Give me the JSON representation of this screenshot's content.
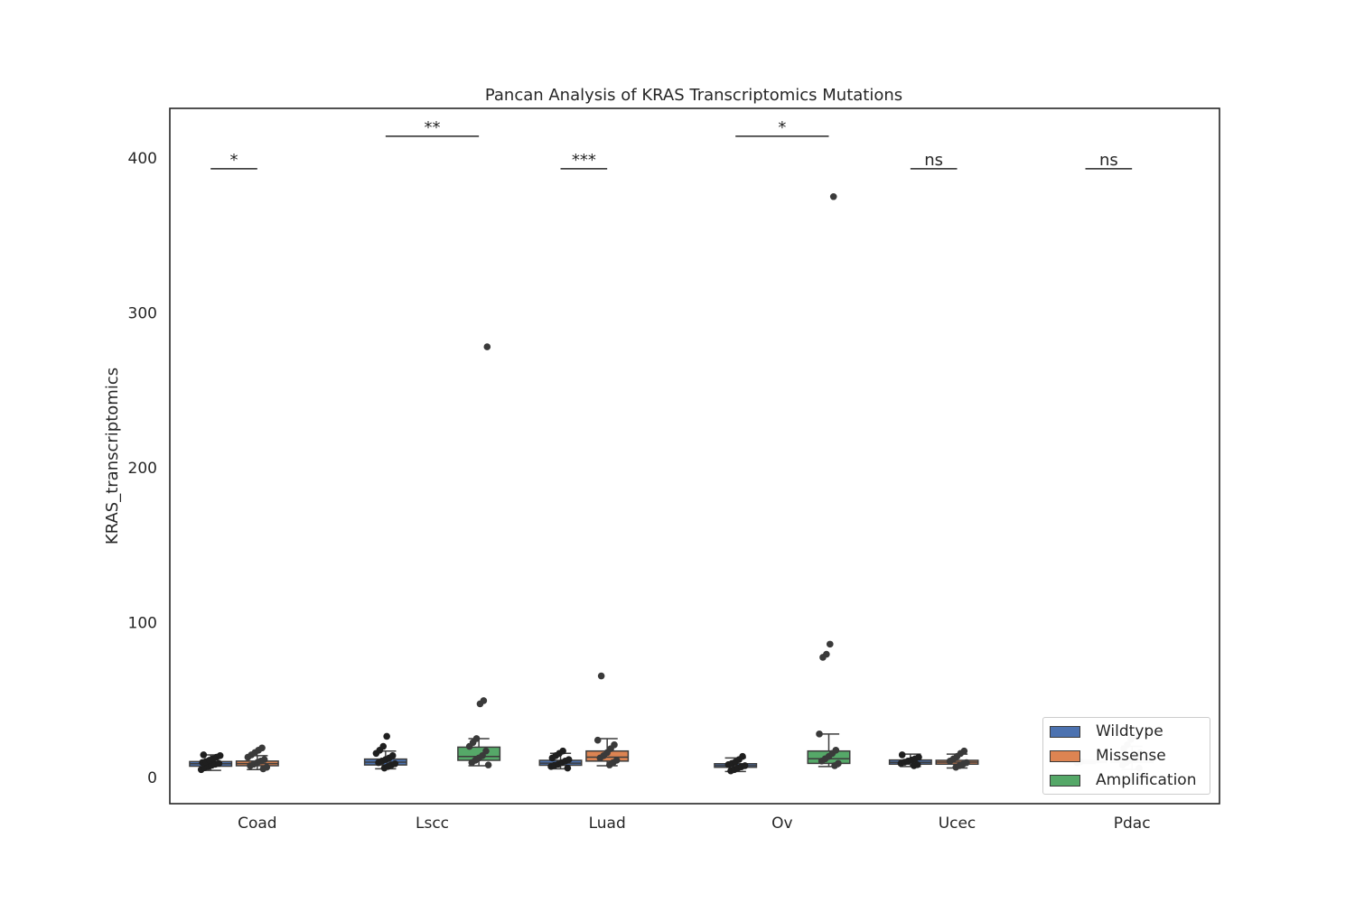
{
  "chart_data": {
    "type": "box",
    "title": "Pancan Analysis of KRAS Transcriptomics Mutations",
    "xlabel": "",
    "ylabel": "KRAS_transcriptomics",
    "ylim": [
      -17,
      432
    ],
    "yticks": [
      0,
      100,
      200,
      300,
      400
    ],
    "grid": false,
    "legend_position": "lower-right",
    "categories": [
      "Coad",
      "Lscc",
      "Luad",
      "Ov",
      "Ucec",
      "Pdac"
    ],
    "series": [
      {
        "name": "Wildtype",
        "color": "#4c72b0",
        "boxes": [
          {
            "category": "Coad",
            "whislo": 4.5,
            "q1": 7.2,
            "med": 8.8,
            "q3": 10.2,
            "whishi": 14.5,
            "points": [
              5.0,
              6.2,
              7.0,
              7.8,
              8.5,
              9.0,
              9.6,
              10.2,
              11.0,
              12.0,
              13.0,
              14.0,
              14.5
            ]
          },
          {
            "category": "Lscc",
            "whislo": 5.5,
            "q1": 8.0,
            "med": 9.8,
            "q3": 11.8,
            "whishi": 17.0,
            "points": [
              6.0,
              7.0,
              8.0,
              8.8,
              9.5,
              10.5,
              11.5,
              12.5,
              14.0,
              15.5,
              17.5,
              20.0,
              26.5
            ]
          },
          {
            "category": "Luad",
            "whislo": 5.5,
            "q1": 7.8,
            "med": 9.2,
            "q3": 11.0,
            "whishi": 15.5,
            "points": [
              6.0,
              7.0,
              7.8,
              8.5,
              9.5,
              10.5,
              11.5,
              12.5,
              14.0,
              15.5,
              17.0
            ]
          },
          {
            "category": "Ov",
            "whislo": 3.8,
            "q1": 6.5,
            "med": 7.6,
            "q3": 8.8,
            "whishi": 12.5,
            "points": [
              4.2,
              5.0,
              6.0,
              6.8,
              7.5,
              8.2,
              9.0,
              10.0,
              11.5,
              13.5
            ]
          },
          {
            "category": "Ucec",
            "whislo": 7.0,
            "q1": 8.5,
            "med": 9.7,
            "q3": 11.2,
            "whishi": 15.0,
            "points": [
              7.5,
              8.2,
              9.0,
              9.8,
              10.5,
              11.2,
              12.0,
              13.0,
              14.5
            ]
          },
          {
            "category": "Pdac",
            "whislo": 9.0,
            "q1": 9.5,
            "med": 10.0,
            "q3": 10.5,
            "whishi": 11.0,
            "points": [
              9.5,
              10.0
            ]
          }
        ]
      },
      {
        "name": "Missense",
        "color": "#dd8452",
        "boxes": [
          {
            "category": "Coad",
            "whislo": 5.0,
            "q1": 7.5,
            "med": 8.9,
            "q3": 10.5,
            "whishi": 14.0,
            "points": [
              5.5,
              6.5,
              7.5,
              8.5,
              9.5,
              10.5,
              11.5,
              13.0,
              14.5,
              16.0,
              17.5,
              19.0
            ]
          },
          {
            "category": "Luad",
            "whislo": 7.5,
            "q1": 10.5,
            "med": 13.0,
            "q3": 17.0,
            "whishi": 25.0,
            "points": [
              8.0,
              9.5,
              11.0,
              12.5,
              14.0,
              16.0,
              18.5,
              21.0,
              24.0,
              65.5
            ]
          },
          {
            "category": "Ucec",
            "whislo": 6.0,
            "q1": 8.5,
            "med": 9.8,
            "q3": 11.0,
            "whishi": 15.0,
            "points": [
              6.5,
              7.5,
              8.5,
              9.5,
              10.5,
              12.0,
              13.5,
              15.5,
              17.0
            ]
          },
          {
            "category": "Pdac",
            "whislo": 5.0,
            "q1": 9.5,
            "med": 11.0,
            "q3": 13.0,
            "whishi": 20.0,
            "points": [
              6.0,
              8.0,
              9.5,
              11.0,
              12.5,
              14.0,
              16.0,
              18.5,
              21.0,
              24.5,
              27.0
            ]
          }
        ]
      },
      {
        "name": "Amplification",
        "color": "#55a868",
        "boxes": [
          {
            "category": "Lscc",
            "whislo": 7.5,
            "q1": 11.0,
            "med": 13.5,
            "q3": 19.5,
            "whishi": 25.0,
            "points": [
              8.0,
              9.5,
              11.0,
              12.5,
              14.0,
              17.0,
              20.0,
              22.5,
              25.0,
              47.5,
              49.5,
              278.0
            ]
          },
          {
            "category": "Ov",
            "whislo": 7.0,
            "q1": 9.0,
            "med": 12.0,
            "q3": 17.0,
            "whishi": 28.0,
            "points": [
              7.5,
              9.0,
              10.5,
              12.0,
              13.5,
              15.5,
              17.5,
              28.0,
              77.5,
              79.5,
              86.0,
              375.0
            ]
          }
        ]
      }
    ],
    "annotations": [
      {
        "category": "Coad",
        "pair": [
          "Wildtype",
          "Missense"
        ],
        "text": "*",
        "y": 393
      },
      {
        "category": "Lscc",
        "pair": [
          "Wildtype",
          "Amplification"
        ],
        "text": "**",
        "y": 414
      },
      {
        "category": "Luad",
        "pair": [
          "Wildtype",
          "Missense"
        ],
        "text": "***",
        "y": 393
      },
      {
        "category": "Ov",
        "pair": [
          "Wildtype",
          "Amplification"
        ],
        "text": "*",
        "y": 414
      },
      {
        "category": "Ucec",
        "pair": [
          "Wildtype",
          "Missense"
        ],
        "text": "ns",
        "y": 393
      },
      {
        "category": "Pdac",
        "pair": [
          "Wildtype",
          "Missense"
        ],
        "text": "ns",
        "y": 393
      }
    ]
  }
}
